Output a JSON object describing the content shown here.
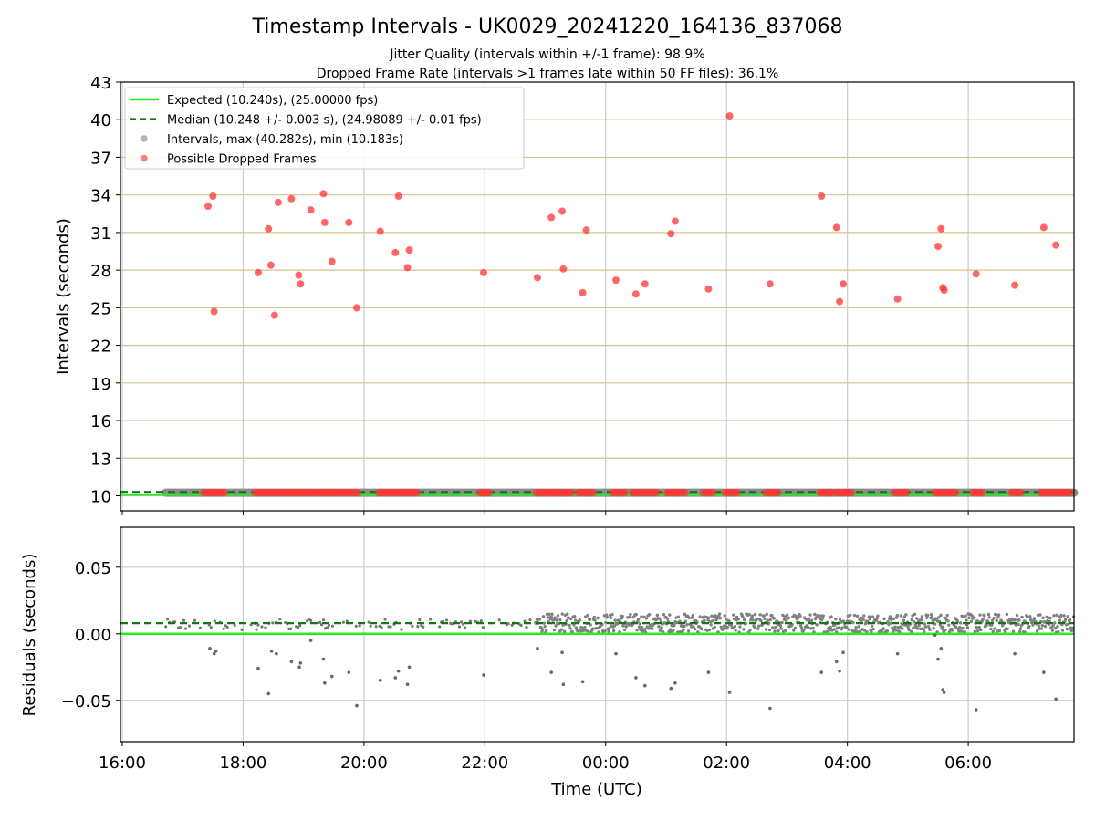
{
  "figure": {
    "title": "Timestamp Intervals - UK0029_20241220_164136_837068",
    "subtitle1": "Jitter Quality (intervals within +/-1 frame): 98.9%",
    "subtitle2": "Dropped Frame Rate (intervals >1 frames late within 50 FF files): 36.1%"
  },
  "chart_data": [
    {
      "type": "scatter",
      "panel": "top",
      "ylabel": "Intervals (seconds)",
      "xlabel": "",
      "xlim_hours": [
        15.97,
        31.75
      ],
      "ylim": [
        8.8,
        43
      ],
      "yticks": [
        10,
        13,
        16,
        19,
        22,
        25,
        28,
        31,
        34,
        37,
        40,
        43
      ],
      "ytick_labels": [
        "10",
        "13",
        "16",
        "19",
        "22",
        "25",
        "28",
        "31",
        "34",
        "37",
        "40",
        "43"
      ],
      "grid": "on",
      "legend_position": "top-left",
      "legend": [
        {
          "label": "Expected (10.240s), (25.00000 fps)",
          "style": "solid-line",
          "color": "#22ee22"
        },
        {
          "label": "Median (10.248 +/- 0.003 s), (24.98089 +/- 0.01 fps)",
          "style": "dashed-line",
          "color": "#117711"
        },
        {
          "label": "Intervals, max (40.282s), min (10.183s)",
          "style": "marker",
          "color": "#999999"
        },
        {
          "label": "Possible Dropped Frames",
          "style": "marker",
          "color": "#ff5555"
        }
      ],
      "expected_value": 10.24,
      "median_value": 10.248,
      "normal_intervals_band": {
        "x_start_hours": 16.72,
        "x_end_hours": 31.75,
        "value": 10.25
      },
      "dropped_frames": [
        {
          "x": 17.42,
          "y": 33.1
        },
        {
          "x": 17.5,
          "y": 33.9
        },
        {
          "x": 17.52,
          "y": 24.7
        },
        {
          "x": 18.25,
          "y": 27.8
        },
        {
          "x": 18.42,
          "y": 31.3
        },
        {
          "x": 18.46,
          "y": 28.4
        },
        {
          "x": 18.52,
          "y": 24.4
        },
        {
          "x": 18.58,
          "y": 33.4
        },
        {
          "x": 18.8,
          "y": 33.7
        },
        {
          "x": 18.92,
          "y": 27.6
        },
        {
          "x": 18.95,
          "y": 26.9
        },
        {
          "x": 19.12,
          "y": 32.8
        },
        {
          "x": 19.33,
          "y": 34.1
        },
        {
          "x": 19.35,
          "y": 31.8
        },
        {
          "x": 19.47,
          "y": 28.7
        },
        {
          "x": 19.75,
          "y": 31.8
        },
        {
          "x": 19.88,
          "y": 25.0
        },
        {
          "x": 20.27,
          "y": 31.1
        },
        {
          "x": 20.52,
          "y": 29.4
        },
        {
          "x": 20.57,
          "y": 33.9
        },
        {
          "x": 20.72,
          "y": 28.2
        },
        {
          "x": 20.75,
          "y": 29.6
        },
        {
          "x": 21.98,
          "y": 27.8
        },
        {
          "x": 22.87,
          "y": 27.4
        },
        {
          "x": 23.1,
          "y": 32.2
        },
        {
          "x": 23.28,
          "y": 32.7
        },
        {
          "x": 23.3,
          "y": 28.1
        },
        {
          "x": 23.62,
          "y": 26.2
        },
        {
          "x": 23.68,
          "y": 31.2
        },
        {
          "x": 24.17,
          "y": 27.2
        },
        {
          "x": 24.5,
          "y": 26.1
        },
        {
          "x": 24.65,
          "y": 26.9
        },
        {
          "x": 25.08,
          "y": 30.9
        },
        {
          "x": 25.15,
          "y": 31.9
        },
        {
          "x": 25.7,
          "y": 26.5
        },
        {
          "x": 26.05,
          "y": 40.3
        },
        {
          "x": 26.72,
          "y": 26.9
        },
        {
          "x": 27.57,
          "y": 33.9
        },
        {
          "x": 27.82,
          "y": 31.4
        },
        {
          "x": 27.87,
          "y": 25.5
        },
        {
          "x": 27.93,
          "y": 26.9
        },
        {
          "x": 28.83,
          "y": 25.7
        },
        {
          "x": 29.5,
          "y": 29.9
        },
        {
          "x": 29.55,
          "y": 31.3
        },
        {
          "x": 29.58,
          "y": 26.6
        },
        {
          "x": 29.6,
          "y": 26.4
        },
        {
          "x": 30.13,
          "y": 27.7
        },
        {
          "x": 30.77,
          "y": 26.8
        },
        {
          "x": 31.25,
          "y": 31.4
        },
        {
          "x": 31.45,
          "y": 30.0
        }
      ],
      "dropped_frame_baseline_clusters": [
        [
          17.35,
          17.7
        ],
        [
          18.2,
          19.9
        ],
        [
          20.25,
          20.9
        ],
        [
          21.92,
          22.08
        ],
        [
          22.85,
          23.45
        ],
        [
          23.55,
          23.82
        ],
        [
          24.12,
          24.32
        ],
        [
          24.45,
          24.85
        ],
        [
          25.02,
          25.35
        ],
        [
          25.62,
          25.78
        ],
        [
          25.98,
          26.18
        ],
        [
          26.65,
          26.85
        ],
        [
          27.55,
          27.75
        ],
        [
          27.82,
          28.1
        ],
        [
          28.78,
          28.98
        ],
        [
          29.45,
          29.8
        ],
        [
          30.08,
          30.25
        ],
        [
          30.72,
          30.88
        ],
        [
          31.2,
          31.7
        ]
      ]
    },
    {
      "type": "scatter",
      "panel": "bottom",
      "ylabel": "Residuals (seconds)",
      "xlabel": "Time (UTC)",
      "xlim_hours": [
        15.97,
        31.75
      ],
      "ylim": [
        -0.081,
        0.08
      ],
      "yticks": [
        -0.05,
        0.0,
        0.05
      ],
      "ytick_labels": [
        "−0.05",
        "0.00",
        "0.05"
      ],
      "grid": "on",
      "xticks_hours": [
        16,
        18,
        20,
        22,
        24,
        26,
        28,
        30
      ],
      "xtick_labels": [
        "16:00",
        "18:00",
        "20:00",
        "22:00",
        "00:00",
        "02:00",
        "04:00",
        "06:00"
      ],
      "expected_residual": 0.0,
      "median_residual": 0.008,
      "residual_band_sparse": {
        "x_start_hours": 16.72,
        "x_end_hours": 22.85,
        "center": 0.007,
        "spread": 0.004
      },
      "residual_band_dense": {
        "x_start_hours": 22.85,
        "x_end_hours": 31.75,
        "center": 0.008,
        "spread": 0.007
      },
      "outliers": [
        {
          "x": 17.45,
          "y": -0.011
        },
        {
          "x": 17.52,
          "y": -0.015
        },
        {
          "x": 17.55,
          "y": -0.013
        },
        {
          "x": 18.25,
          "y": -0.026
        },
        {
          "x": 18.42,
          "y": -0.045
        },
        {
          "x": 18.47,
          "y": -0.013
        },
        {
          "x": 18.55,
          "y": -0.015
        },
        {
          "x": 18.8,
          "y": -0.021
        },
        {
          "x": 18.93,
          "y": -0.025
        },
        {
          "x": 18.95,
          "y": -0.022
        },
        {
          "x": 19.12,
          "y": -0.005
        },
        {
          "x": 19.33,
          "y": -0.019
        },
        {
          "x": 19.35,
          "y": -0.037
        },
        {
          "x": 19.47,
          "y": -0.032
        },
        {
          "x": 19.75,
          "y": -0.029
        },
        {
          "x": 19.88,
          "y": -0.054
        },
        {
          "x": 20.27,
          "y": -0.035
        },
        {
          "x": 20.52,
          "y": -0.033
        },
        {
          "x": 20.57,
          "y": -0.028
        },
        {
          "x": 20.72,
          "y": -0.038
        },
        {
          "x": 20.75,
          "y": -0.025
        },
        {
          "x": 21.98,
          "y": -0.031
        },
        {
          "x": 22.87,
          "y": -0.011
        },
        {
          "x": 23.1,
          "y": -0.029
        },
        {
          "x": 23.28,
          "y": -0.014
        },
        {
          "x": 23.3,
          "y": -0.038
        },
        {
          "x": 23.62,
          "y": -0.036
        },
        {
          "x": 24.17,
          "y": -0.015
        },
        {
          "x": 24.5,
          "y": -0.033
        },
        {
          "x": 24.65,
          "y": -0.039
        },
        {
          "x": 25.08,
          "y": -0.041
        },
        {
          "x": 25.15,
          "y": -0.037
        },
        {
          "x": 25.7,
          "y": -0.029
        },
        {
          "x": 26.05,
          "y": -0.044
        },
        {
          "x": 26.72,
          "y": -0.056
        },
        {
          "x": 27.57,
          "y": -0.029
        },
        {
          "x": 27.82,
          "y": -0.021
        },
        {
          "x": 27.87,
          "y": -0.028
        },
        {
          "x": 27.93,
          "y": -0.014
        },
        {
          "x": 28.83,
          "y": -0.015
        },
        {
          "x": 29.45,
          "y": -0.001
        },
        {
          "x": 29.5,
          "y": -0.019
        },
        {
          "x": 29.55,
          "y": -0.011
        },
        {
          "x": 29.58,
          "y": -0.042
        },
        {
          "x": 29.6,
          "y": -0.044
        },
        {
          "x": 30.13,
          "y": -0.057
        },
        {
          "x": 30.77,
          "y": -0.015
        },
        {
          "x": 31.25,
          "y": -0.029
        },
        {
          "x": 31.45,
          "y": -0.049
        }
      ]
    }
  ]
}
